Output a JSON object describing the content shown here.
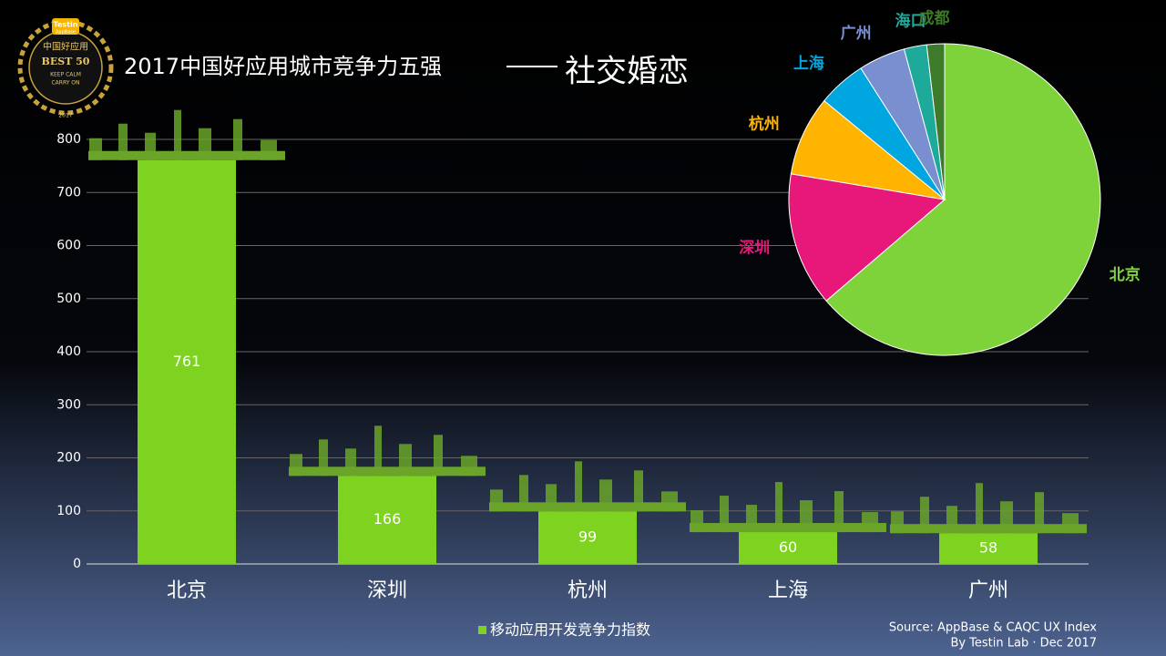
{
  "badge": {
    "brand": "Testin",
    "sub": "AppBase",
    "line1": "中国好应用",
    "line2": "BEST 50",
    "line3": "KEEP CALM",
    "line4": "CARRY ON",
    "year": "2017"
  },
  "chart_data": [
    {
      "type": "bar",
      "title": "2017中国好应用城市竞争力五强",
      "subtitle": "社交婚恋",
      "categories": [
        "北京",
        "深圳",
        "杭州",
        "上海",
        "广州"
      ],
      "series": [
        {
          "name": "移动应用开发竞争力指数",
          "color": "#7ed321",
          "values": [
            761,
            166,
            99,
            60,
            58
          ]
        }
      ],
      "ylim": [
        0,
        800
      ],
      "yticks": [
        0,
        100,
        200,
        300,
        400,
        500,
        600,
        700,
        800
      ],
      "grid": true,
      "legend": "bottom",
      "source": "Source: AppBase & CAQC UX Index",
      "credit": "By Testin Lab · Dec 2017"
    },
    {
      "type": "pie",
      "categories": [
        "北京",
        "深圳",
        "杭州",
        "上海",
        "广州",
        "海口",
        "成都"
      ],
      "values": [
        761,
        166,
        99,
        60,
        58,
        28,
        22
      ],
      "colors": [
        "#7ed33a",
        "#e8177a",
        "#ffb400",
        "#00a6e0",
        "#7a8fd0",
        "#1eaa9a",
        "#3d7a2a"
      ]
    }
  ]
}
